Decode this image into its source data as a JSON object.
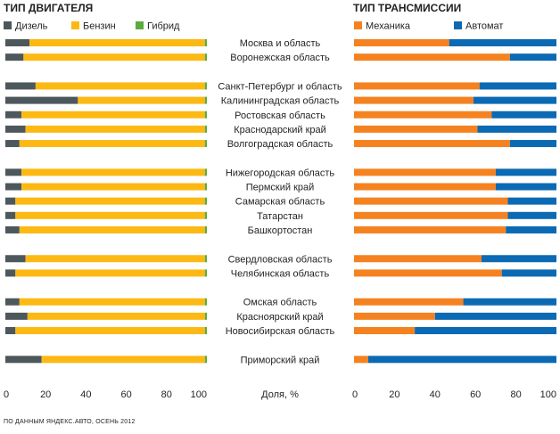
{
  "source": "ПО ДАННЫМ ЯНДЕКС.АВТО, ОСЕНЬ 2012",
  "axis_unit": "Доля, %",
  "colors": {
    "diesel": "#4d585d",
    "petrol": "#fdb913",
    "hybrid": "#5dab3f",
    "manual": "#f58220",
    "automatic": "#0b6ab3",
    "text": "#231f20"
  },
  "chart_data": [
    {
      "type": "bar",
      "orientation": "horizontal",
      "stacked": true,
      "title": "ТИП ДВИГАТЕЛЯ",
      "xlabel": "",
      "xlim": [
        0,
        100
      ],
      "xticks": [
        0,
        20,
        40,
        60,
        80,
        100
      ],
      "legend_position": "top",
      "categories": [
        "Москва и область",
        "Воронежская область",
        "Санкт-Петербург и область",
        "Калининградская область",
        "Ростовская область",
        "Краснодарский край",
        "Волгоградская область",
        "Нижегородская область",
        "Пермский край",
        "Самарская область",
        "Татарстан",
        "Башкортостан",
        "Свердловская область",
        "Челябинская область",
        "Омская область",
        "Красноярский край",
        "Новосибирская область",
        "Приморский край"
      ],
      "groups": [
        2,
        5,
        5,
        2,
        3,
        1
      ],
      "series": [
        {
          "name": "Дизель",
          "values": [
            12,
            9,
            15,
            36,
            8,
            10,
            7,
            8,
            8,
            5,
            5,
            7,
            10,
            5,
            7,
            11,
            5,
            18
          ]
        },
        {
          "name": "Бензин",
          "values": [
            87,
            90,
            84,
            63,
            91,
            89,
            92,
            91,
            91,
            94,
            94,
            92,
            89,
            94,
            92,
            88,
            94,
            81
          ]
        },
        {
          "name": "Гибрид",
          "values": [
            1,
            1,
            1,
            1,
            1,
            1,
            1,
            1,
            1,
            1,
            1,
            1,
            1,
            1,
            1,
            1,
            1,
            1
          ]
        }
      ]
    },
    {
      "type": "bar",
      "orientation": "horizontal",
      "stacked": true,
      "title": "ТИП ТРАНСМИССИИ",
      "xlabel": "",
      "xlim": [
        0,
        100
      ],
      "xticks": [
        0,
        20,
        40,
        60,
        80,
        100
      ],
      "legend_position": "top",
      "categories": [
        "Москва и область",
        "Воронежская область",
        "Санкт-Петербург и область",
        "Калининградская область",
        "Ростовская область",
        "Краснодарский край",
        "Волгоградская область",
        "Нижегородская область",
        "Пермский край",
        "Самарская область",
        "Татарстан",
        "Башкортостан",
        "Свердловская область",
        "Челябинская область",
        "Омская область",
        "Красноярский край",
        "Новосибирская область",
        "Приморский край"
      ],
      "groups": [
        2,
        5,
        5,
        2,
        3,
        1
      ],
      "series": [
        {
          "name": "Механика",
          "values": [
            47,
            77,
            62,
            59,
            68,
            61,
            77,
            70,
            70,
            76,
            76,
            75,
            63,
            73,
            54,
            40,
            30,
            7
          ]
        },
        {
          "name": "Автомат",
          "values": [
            53,
            23,
            38,
            41,
            32,
            39,
            23,
            30,
            30,
            24,
            24,
            25,
            37,
            27,
            46,
            60,
            70,
            93
          ]
        }
      ]
    }
  ]
}
